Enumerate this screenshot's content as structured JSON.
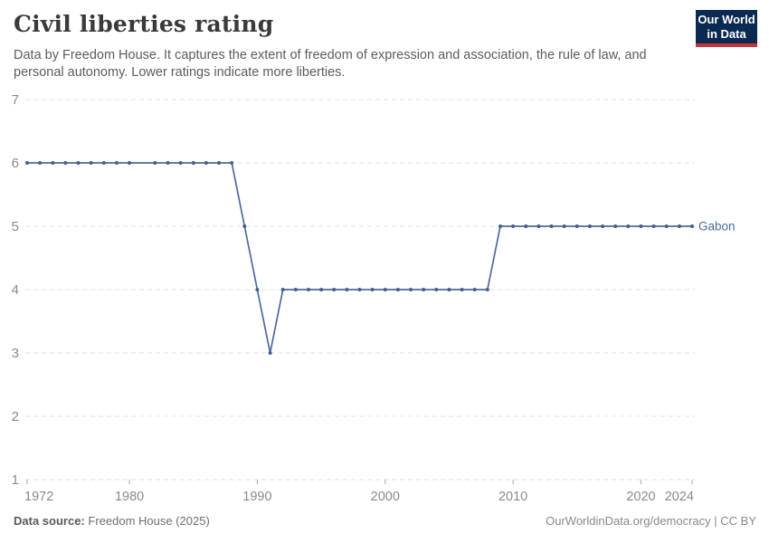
{
  "header": {
    "title": "Civil liberties rating",
    "subtitle_line1": "Data by Freedom House. It captures the extent of freedom of expression and association, the rule of law, and",
    "subtitle_line2": "personal autonomy. Lower ratings indicate more liberties."
  },
  "logo": {
    "line1": "Our World",
    "line2": "in Data"
  },
  "footer": {
    "source_label": "Data source:",
    "source_value": "Freedom House (2025)",
    "right_note": "OurWorldinData.org/democracy | CC BY"
  },
  "chart_data": {
    "type": "line",
    "title": "Civil liberties rating",
    "xlabel": "",
    "ylabel": "",
    "xlim": [
      1972,
      2024
    ],
    "ylim": [
      1,
      7
    ],
    "x_ticks": [
      1972,
      1980,
      1990,
      2000,
      2010,
      2020,
      2024
    ],
    "y_ticks": [
      1,
      2,
      3,
      4,
      5,
      6,
      7
    ],
    "grid": "horizontal-dashed",
    "legend_position": "end-of-line-label",
    "missing_years": [
      1981
    ],
    "colors": {
      "line": "#4c6a9c",
      "marker": "#41608f",
      "grid": "#e2e2e2",
      "axis_text": "#8a8a8a",
      "tick_mark": "#a8a8a8",
      "logo_bg": "#0b2a52",
      "logo_red": "#c5353c"
    },
    "series": [
      {
        "name": "Gabon",
        "points": [
          [
            1972,
            6
          ],
          [
            1973,
            6
          ],
          [
            1974,
            6
          ],
          [
            1975,
            6
          ],
          [
            1976,
            6
          ],
          [
            1977,
            6
          ],
          [
            1978,
            6
          ],
          [
            1979,
            6
          ],
          [
            1980,
            6
          ],
          [
            1982,
            6
          ],
          [
            1983,
            6
          ],
          [
            1984,
            6
          ],
          [
            1985,
            6
          ],
          [
            1986,
            6
          ],
          [
            1987,
            6
          ],
          [
            1988,
            6
          ],
          [
            1989,
            5
          ],
          [
            1990,
            4
          ],
          [
            1991,
            3
          ],
          [
            1992,
            4
          ],
          [
            1993,
            4
          ],
          [
            1994,
            4
          ],
          [
            1995,
            4
          ],
          [
            1996,
            4
          ],
          [
            1997,
            4
          ],
          [
            1998,
            4
          ],
          [
            1999,
            4
          ],
          [
            2000,
            4
          ],
          [
            2001,
            4
          ],
          [
            2002,
            4
          ],
          [
            2003,
            4
          ],
          [
            2004,
            4
          ],
          [
            2005,
            4
          ],
          [
            2006,
            4
          ],
          [
            2007,
            4
          ],
          [
            2008,
            4
          ],
          [
            2009,
            5
          ],
          [
            2010,
            5
          ],
          [
            2011,
            5
          ],
          [
            2012,
            5
          ],
          [
            2013,
            5
          ],
          [
            2014,
            5
          ],
          [
            2015,
            5
          ],
          [
            2016,
            5
          ],
          [
            2017,
            5
          ],
          [
            2018,
            5
          ],
          [
            2019,
            5
          ],
          [
            2020,
            5
          ],
          [
            2021,
            5
          ],
          [
            2022,
            5
          ],
          [
            2023,
            5
          ],
          [
            2024,
            5
          ]
        ]
      }
    ]
  }
}
